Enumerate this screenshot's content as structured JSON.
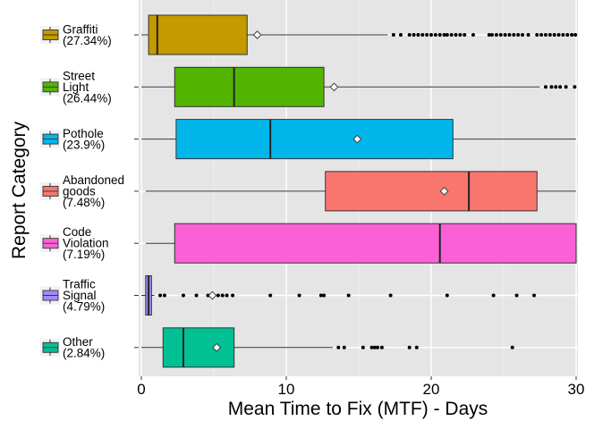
{
  "chart_data": {
    "type": "boxplot",
    "orientation": "horizontal",
    "xlabel": "Mean Time to Fix (MTF) - Days",
    "ylabel": "Report Category",
    "xlim": [
      0,
      30
    ],
    "x_ticks": [
      0,
      10,
      20,
      30
    ],
    "grid": true,
    "series": [
      {
        "name": "Graffiti",
        "label_lines": [
          "Graffiti",
          "(27.34%)"
        ],
        "color": "#C49A00",
        "q1": 0.5,
        "median": 1.1,
        "q3": 7.3,
        "whisker_low": 0.0,
        "whisker_high": 17.0,
        "mean": 8.0,
        "outliers": [
          17.4,
          17.9,
          18.5,
          18.8,
          19.1,
          19.4,
          19.7,
          20.0,
          20.3,
          20.6,
          20.9,
          21.1,
          21.4,
          21.7,
          22.0,
          22.3,
          22.9,
          24.0,
          24.2,
          24.5,
          24.8,
          25.1,
          25.4,
          25.7,
          26.0,
          26.3,
          26.7,
          27.3,
          27.6,
          27.9,
          28.2,
          28.5,
          28.8,
          29.1,
          29.4,
          29.7,
          29.95
        ]
      },
      {
        "name": "Street Light",
        "label_lines": [
          "Street",
          "Light",
          "(26.44%)"
        ],
        "color": "#53B400",
        "q1": 2.3,
        "median": 6.4,
        "q3": 12.6,
        "whisker_low": 0.0,
        "whisker_high": 27.5,
        "mean": 13.3,
        "outliers": [
          27.9,
          28.3,
          28.6,
          28.9,
          29.3,
          29.9
        ]
      },
      {
        "name": "Pothole",
        "label_lines": [
          "Pothole",
          "(23.9%)"
        ],
        "color": "#00B6EB",
        "q1": 2.4,
        "median": 8.9,
        "q3": 21.5,
        "whisker_low": 0.0,
        "whisker_high": 30.0,
        "mean": 14.9,
        "outliers": []
      },
      {
        "name": "Abandoned goods",
        "label_lines": [
          "Abandoned",
          "goods",
          "(7.48%)"
        ],
        "color": "#F8766D",
        "q1": 12.7,
        "median": 22.6,
        "q3": 27.3,
        "whisker_low": 0.3,
        "whisker_high": 30.0,
        "mean": 20.9,
        "outliers": []
      },
      {
        "name": "Code Violation",
        "label_lines": [
          "Code",
          "Violation",
          "(7.19%)"
        ],
        "color": "#FB61D7",
        "q1": 2.3,
        "median": 20.6,
        "q3": 30.0,
        "whisker_low": 0.3,
        "whisker_high": 30.0,
        "mean": null,
        "outliers": []
      },
      {
        "name": "Traffic Signal",
        "label_lines": [
          "Traffic",
          "Signal",
          "(4.79%)"
        ],
        "color": "#A58AFF",
        "q1": 0.3,
        "median": 0.5,
        "q3": 0.7,
        "whisker_low": 0.0,
        "whisker_high": 0.9,
        "mean": 4.9,
        "outliers": [
          1.3,
          1.6,
          2.9,
          3.8,
          4.6,
          5.3,
          5.6,
          5.9,
          6.3,
          8.9,
          10.9,
          12.4,
          12.6,
          14.3,
          17.2,
          21.1,
          24.3,
          25.9,
          27.1
        ]
      },
      {
        "name": "Other",
        "label_lines": [
          "Other",
          "(2.84%)"
        ],
        "color": "#00C094",
        "q1": 1.5,
        "median": 2.9,
        "q3": 6.4,
        "whisker_low": 0.0,
        "whisker_high": 13.2,
        "mean": 5.2,
        "outliers": [
          13.6,
          14.0,
          15.3,
          15.9,
          16.1,
          16.3,
          16.6,
          18.5,
          19.0,
          25.6
        ]
      }
    ]
  }
}
